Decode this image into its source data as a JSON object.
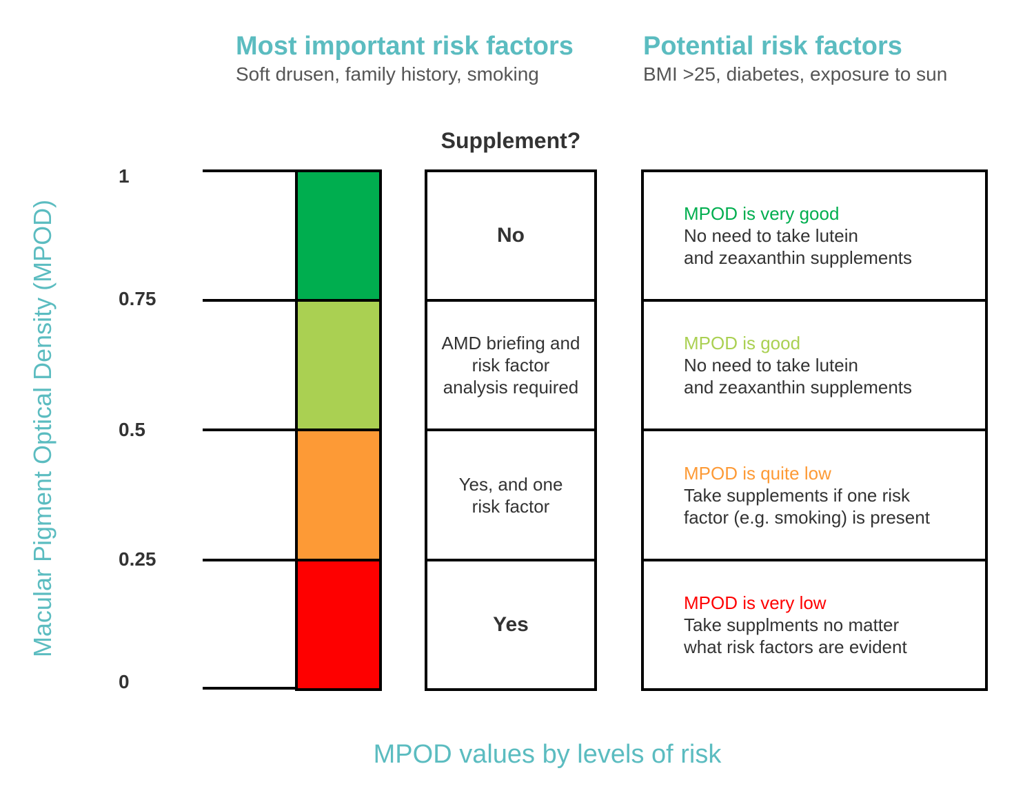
{
  "header": {
    "left_title": "Most important risk factors",
    "left_subtitle": "Soft drusen, family history, smoking",
    "right_title": "Potential risk factors",
    "right_subtitle": "BMI >25, diabetes, exposure to sun"
  },
  "column_title": "Supplement?",
  "y_axis": {
    "label": "Macular Pigment Optical Density (MPOD)",
    "ticks": [
      "1",
      "0.75",
      "0.5",
      "0.25",
      "0"
    ]
  },
  "x_caption": "MPOD values by levels of risk",
  "levels": [
    {
      "range": [
        0.75,
        1
      ],
      "color": "#00ae4f",
      "supplement": "No",
      "status": "MPOD is very good",
      "advice_1": "No need to take lutein",
      "advice_2": "and zeaxanthin supplements"
    },
    {
      "range": [
        0.5,
        0.75
      ],
      "color": "#aad052",
      "supplement": "AMD briefing and risk factor analysis required",
      "status": "MPOD is good",
      "advice_1": "No need to take lutein",
      "advice_2": "and zeaxanthin supplements"
    },
    {
      "range": [
        0.25,
        0.5
      ],
      "color": "#fd9a36",
      "supplement": "Yes, and one risk factor",
      "status": "MPOD is quite low",
      "advice_1": "Take supplements if one risk",
      "advice_2": "factor (e.g. smoking) is present"
    },
    {
      "range": [
        0,
        0.25
      ],
      "color": "#fe0000",
      "supplement": "Yes",
      "status": "MPOD is very low",
      "advice_1": "Take supplments no matter",
      "advice_2": "what risk factors are evident"
    }
  ]
}
